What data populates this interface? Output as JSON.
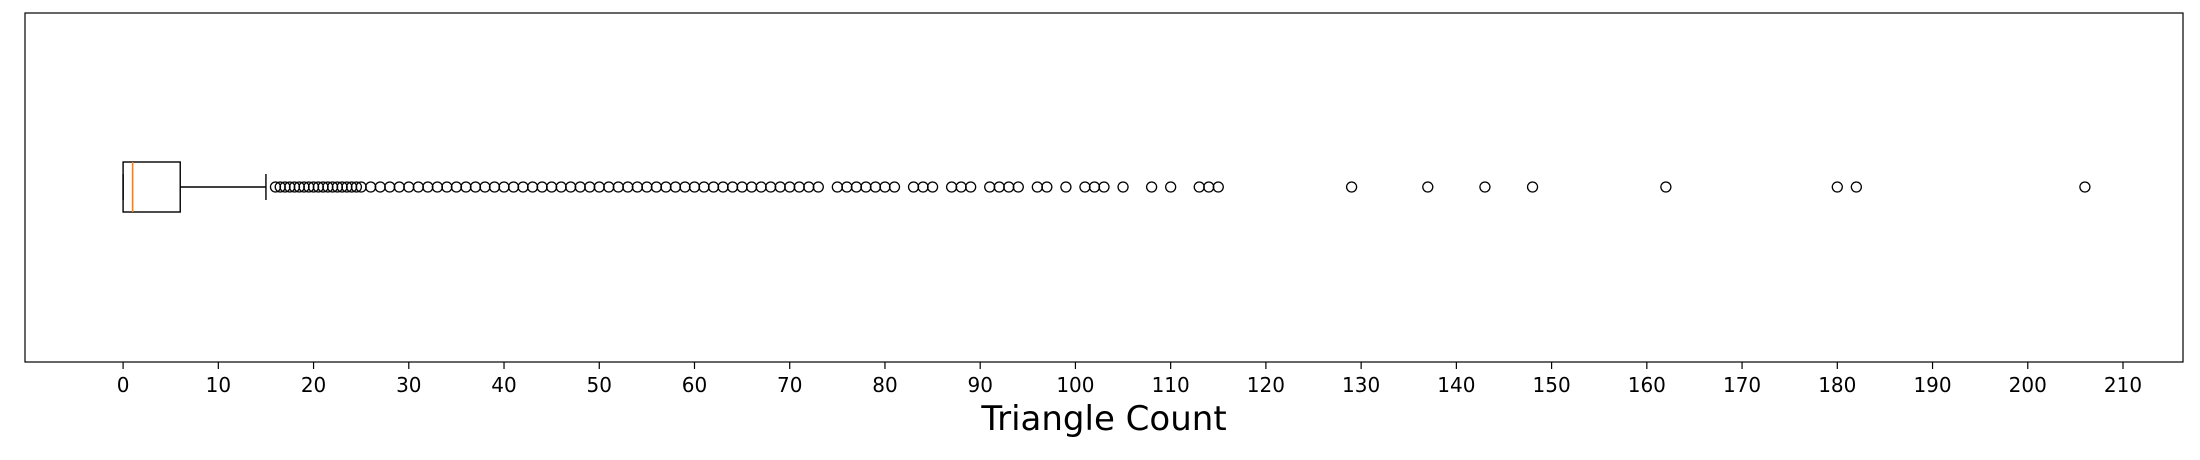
{
  "chart_data": {
    "type": "boxplot",
    "orientation": "horizontal",
    "xlabel": "Triangle Count",
    "xlim": [
      -10.3,
      216.3
    ],
    "xticks": [
      0,
      10,
      20,
      30,
      40,
      50,
      60,
      70,
      80,
      90,
      100,
      110,
      120,
      130,
      140,
      150,
      160,
      170,
      180,
      190,
      200,
      210
    ],
    "grid": false,
    "box": {
      "whisker_low": 0,
      "q1": 0,
      "median": 1,
      "q3": 6,
      "whisker_high": 15
    },
    "outliers": [
      16,
      16.5,
      17,
      17.5,
      18,
      18.5,
      19,
      19.5,
      20,
      20.5,
      21,
      21.5,
      22,
      22.5,
      23,
      23.5,
      24,
      24.5,
      25,
      26,
      27,
      28,
      29,
      30,
      31,
      32,
      33,
      34,
      35,
      36,
      37,
      38,
      39,
      40,
      41,
      42,
      43,
      44,
      45,
      46,
      47,
      48,
      49,
      50,
      51,
      52,
      53,
      54,
      55,
      56,
      57,
      58,
      59,
      60,
      61,
      62,
      63,
      64,
      65,
      66,
      67,
      68,
      69,
      70,
      71,
      72,
      73,
      75,
      76,
      77,
      78,
      79,
      80,
      81,
      83,
      84,
      85,
      87,
      88,
      89,
      91,
      92,
      93,
      94,
      96,
      97,
      99,
      101,
      102,
      103,
      105,
      108,
      110,
      113,
      114,
      115,
      129,
      137,
      143,
      148,
      162,
      180,
      182,
      206
    ],
    "colors": {
      "box": "#000000",
      "median": "#ff7f0e",
      "outlier_edge": "#000000"
    }
  }
}
